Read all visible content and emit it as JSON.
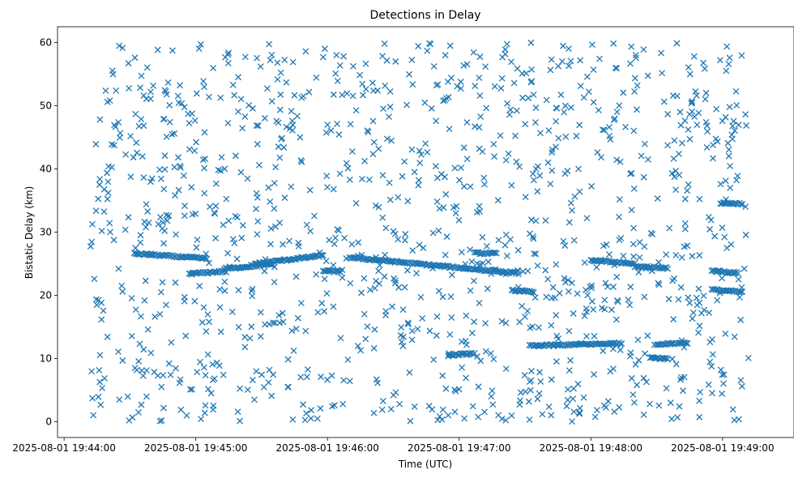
{
  "chart_data": {
    "type": "scatter",
    "title": "Detections in Delay",
    "xlabel": "Time (UTC)",
    "ylabel": "Bistatic Delay (km)",
    "marker": "x",
    "color": "#1f77b4",
    "grid": false,
    "xlim": [
      "2025-08-01 19:43:57",
      "2025-08-01 19:49:27"
    ],
    "ylim": [
      -2.5,
      62.5
    ],
    "x_ticks": [
      "2025-08-01 19:44:00",
      "2025-08-01 19:45:00",
      "2025-08-01 19:46:00",
      "2025-08-01 19:47:00",
      "2025-08-01 19:48:00",
      "2025-08-01 19:49:00"
    ],
    "y_ticks": [
      0,
      10,
      20,
      30,
      40,
      50,
      60
    ],
    "x_start": "2025-08-01 19:44:12",
    "x_end": "2025-08-01 19:49:12",
    "track_segments": [
      {
        "x0": "2025-08-01 19:44:32",
        "x1": "2025-08-01 19:45:05",
        "y0": 26.6,
        "y1": 25.8
      },
      {
        "x0": "2025-08-01 19:44:57",
        "x1": "2025-08-01 19:45:13",
        "y0": 23.4,
        "y1": 23.8
      },
      {
        "x0": "2025-08-01 19:45:13",
        "x1": "2025-08-01 19:45:35",
        "y0": 24.2,
        "y1": 24.9
      },
      {
        "x0": "2025-08-01 19:45:27",
        "x1": "2025-08-01 19:45:58",
        "y0": 25.0,
        "y1": 26.3
      },
      {
        "x0": "2025-08-01 19:45:58",
        "x1": "2025-08-01 19:46:06",
        "y0": 23.9,
        "y1": 23.7
      },
      {
        "x0": "2025-08-01 19:46:10",
        "x1": "2025-08-01 19:47:17",
        "y0": 26.0,
        "y1": 23.8
      },
      {
        "x0": "2025-08-01 19:46:55",
        "x1": "2025-08-01 19:47:07",
        "y0": 10.5,
        "y1": 10.8
      },
      {
        "x0": "2025-08-01 19:47:07",
        "x1": "2025-08-01 19:47:17",
        "y0": 26.7,
        "y1": 26.6
      },
      {
        "x0": "2025-08-01 19:47:17",
        "x1": "2025-08-01 19:47:27",
        "y0": 23.8,
        "y1": 23.5
      },
      {
        "x0": "2025-08-01 19:47:24",
        "x1": "2025-08-01 19:47:34",
        "y0": 20.8,
        "y1": 20.5
      },
      {
        "x0": "2025-08-01 19:47:32",
        "x1": "2025-08-01 19:48:14",
        "y0": 12.0,
        "y1": 12.4
      },
      {
        "x0": "2025-08-01 19:48:00",
        "x1": "2025-08-01 19:48:20",
        "y0": 25.6,
        "y1": 25.0
      },
      {
        "x0": "2025-08-01 19:48:20",
        "x1": "2025-08-01 19:48:35",
        "y0": 24.6,
        "y1": 24.3
      },
      {
        "x0": "2025-08-01 19:48:27",
        "x1": "2025-08-01 19:48:35",
        "y0": 10.1,
        "y1": 9.9
      },
      {
        "x0": "2025-08-01 19:48:30",
        "x1": "2025-08-01 19:48:44",
        "y0": 12.2,
        "y1": 12.5
      },
      {
        "x0": "2025-08-01 19:48:55",
        "x1": "2025-08-01 19:49:07",
        "y0": 23.9,
        "y1": 23.5
      },
      {
        "x0": "2025-08-01 19:48:59",
        "x1": "2025-08-01 19:49:09",
        "y0": 34.6,
        "y1": 34.5
      },
      {
        "x0": "2025-08-01 19:48:55",
        "x1": "2025-08-01 19:49:09",
        "y0": 20.9,
        "y1": 20.5
      }
    ]
  }
}
